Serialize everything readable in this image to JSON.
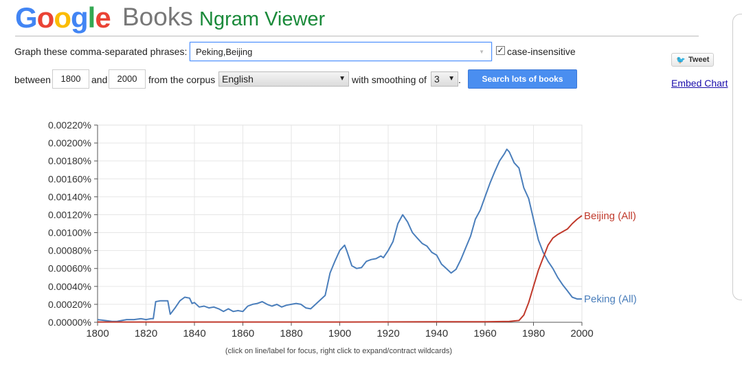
{
  "header": {
    "logo_letters": [
      {
        "ch": "G",
        "color": "#4285F4"
      },
      {
        "ch": "o",
        "color": "#EA4335"
      },
      {
        "ch": "o",
        "color": "#FBBC05"
      },
      {
        "ch": "g",
        "color": "#4285F4"
      },
      {
        "ch": "l",
        "color": "#34A853"
      },
      {
        "ch": "e",
        "color": "#EA4335"
      }
    ],
    "books": "Books",
    "ngram": "Ngram Viewer"
  },
  "form": {
    "phrases_label": "Graph these comma-separated phrases:",
    "phrases_value": "Peking,Beijing",
    "case_insensitive_label": "case-insensitive",
    "case_insensitive_checked": "✓",
    "between_label": "between",
    "start_year": "1800",
    "and_label": "and",
    "end_year": "2000",
    "corpus_label": "from the corpus",
    "corpus_value": "English",
    "smoothing_label": "with smoothing of",
    "smoothing_value": "3",
    "period": ".",
    "search_button": "Search lots of books"
  },
  "share": {
    "tweet": "Tweet",
    "embed": "Embed Chart"
  },
  "caption": "(click on line/label for focus, right click to expand/contract wildcards)",
  "chart_data": {
    "type": "line",
    "xlim": [
      1800,
      2000
    ],
    "ylim": [
      0,
      0.0022
    ],
    "x_ticks": [
      1800,
      1820,
      1840,
      1860,
      1880,
      1900,
      1920,
      1940,
      1960,
      1980,
      2000
    ],
    "x_tick_labels": [
      "1800",
      "1820",
      "1840",
      "1860",
      "1880",
      "1900",
      "1920",
      "1940",
      "1960",
      "1980",
      "2000"
    ],
    "y_ticks": [
      0,
      0.0002,
      0.0004,
      0.0006,
      0.0008,
      0.001,
      0.0012,
      0.0014,
      0.0016,
      0.0018,
      0.002,
      0.0022
    ],
    "y_tick_labels": [
      "0.00000%",
      "0.00020%",
      "0.00040%",
      "0.00060%",
      "0.00080%",
      "0.00100%",
      "0.00120%",
      "0.00140%",
      "0.00160%",
      "0.00180%",
      "0.00200%",
      "0.00220%"
    ],
    "grid": true,
    "legend": "end-of-line labels",
    "series": [
      {
        "name": "Peking (All)",
        "color": "#4a7ebb",
        "points": [
          [
            1800,
            3e-05
          ],
          [
            1803,
            2e-05
          ],
          [
            1806,
            1e-05
          ],
          [
            1808,
            1e-05
          ],
          [
            1810,
            2e-05
          ],
          [
            1812,
            3e-05
          ],
          [
            1815,
            3e-05
          ],
          [
            1818,
            4e-05
          ],
          [
            1820,
            3e-05
          ],
          [
            1822,
            4e-05
          ],
          [
            1823,
            4e-05
          ],
          [
            1824,
            0.00023
          ],
          [
            1826,
            0.00024
          ],
          [
            1828,
            0.00024
          ],
          [
            1829,
            0.00024
          ],
          [
            1830,
            9e-05
          ],
          [
            1832,
            0.00016
          ],
          [
            1834,
            0.00024
          ],
          [
            1836,
            0.00028
          ],
          [
            1838,
            0.00027
          ],
          [
            1839,
            0.00021
          ],
          [
            1840,
            0.00022
          ],
          [
            1842,
            0.00017
          ],
          [
            1844,
            0.00018
          ],
          [
            1846,
            0.00016
          ],
          [
            1848,
            0.00017
          ],
          [
            1850,
            0.00015
          ],
          [
            1852,
            0.00012
          ],
          [
            1854,
            0.00015
          ],
          [
            1856,
            0.00012
          ],
          [
            1858,
            0.00013
          ],
          [
            1860,
            0.00012
          ],
          [
            1862,
            0.00018
          ],
          [
            1864,
            0.0002
          ],
          [
            1866,
            0.00021
          ],
          [
            1868,
            0.00023
          ],
          [
            1870,
            0.0002
          ],
          [
            1872,
            0.00018
          ],
          [
            1874,
            0.0002
          ],
          [
            1876,
            0.00017
          ],
          [
            1878,
            0.00019
          ],
          [
            1880,
            0.0002
          ],
          [
            1882,
            0.00021
          ],
          [
            1884,
            0.0002
          ],
          [
            1886,
            0.00016
          ],
          [
            1888,
            0.00015
          ],
          [
            1890,
            0.0002
          ],
          [
            1892,
            0.00025
          ],
          [
            1894,
            0.0003
          ],
          [
            1896,
            0.00055
          ],
          [
            1898,
            0.00068
          ],
          [
            1900,
            0.0008
          ],
          [
            1902,
            0.00086
          ],
          [
            1903,
            0.00079
          ],
          [
            1905,
            0.00063
          ],
          [
            1907,
            0.0006
          ],
          [
            1909,
            0.00061
          ],
          [
            1911,
            0.00068
          ],
          [
            1913,
            0.0007
          ],
          [
            1915,
            0.00071
          ],
          [
            1917,
            0.00074
          ],
          [
            1918,
            0.00072
          ],
          [
            1920,
            0.0008
          ],
          [
            1922,
            0.0009
          ],
          [
            1924,
            0.0011
          ],
          [
            1926,
            0.0012
          ],
          [
            1928,
            0.00112
          ],
          [
            1930,
            0.001
          ],
          [
            1932,
            0.00094
          ],
          [
            1934,
            0.00088
          ],
          [
            1936,
            0.00085
          ],
          [
            1938,
            0.00078
          ],
          [
            1940,
            0.00075
          ],
          [
            1942,
            0.00065
          ],
          [
            1944,
            0.0006
          ],
          [
            1946,
            0.00055
          ],
          [
            1948,
            0.00059
          ],
          [
            1950,
            0.0007
          ],
          [
            1952,
            0.00083
          ],
          [
            1954,
            0.00096
          ],
          [
            1956,
            0.00115
          ],
          [
            1958,
            0.00125
          ],
          [
            1960,
            0.0014
          ],
          [
            1962,
            0.00155
          ],
          [
            1964,
            0.00168
          ],
          [
            1966,
            0.0018
          ],
          [
            1968,
            0.00188
          ],
          [
            1969,
            0.00193
          ],
          [
            1970,
            0.0019
          ],
          [
            1972,
            0.00178
          ],
          [
            1974,
            0.00172
          ],
          [
            1976,
            0.0015
          ],
          [
            1978,
            0.00138
          ],
          [
            1980,
            0.00115
          ],
          [
            1982,
            0.00092
          ],
          [
            1984,
            0.00078
          ],
          [
            1986,
            0.00068
          ],
          [
            1988,
            0.0006
          ],
          [
            1990,
            0.0005
          ],
          [
            1992,
            0.00042
          ],
          [
            1994,
            0.00035
          ],
          [
            1996,
            0.00028
          ],
          [
            1998,
            0.00026
          ],
          [
            2000,
            0.00026
          ]
        ]
      },
      {
        "name": "Beijing (All)",
        "color": "#c0392b",
        "points": [
          [
            1800,
            3e-06
          ],
          [
            1900,
            3e-06
          ],
          [
            1940,
            5e-06
          ],
          [
            1960,
            6e-06
          ],
          [
            1970,
            1e-05
          ],
          [
            1974,
            2e-05
          ],
          [
            1976,
            8e-05
          ],
          [
            1978,
            0.00022
          ],
          [
            1980,
            0.0004
          ],
          [
            1982,
            0.00058
          ],
          [
            1984,
            0.00072
          ],
          [
            1986,
            0.00086
          ],
          [
            1988,
            0.00094
          ],
          [
            1990,
            0.00098
          ],
          [
            1992,
            0.00101
          ],
          [
            1994,
            0.00104
          ],
          [
            1996,
            0.0011
          ],
          [
            1998,
            0.00115
          ],
          [
            2000,
            0.00119
          ]
        ]
      }
    ]
  }
}
